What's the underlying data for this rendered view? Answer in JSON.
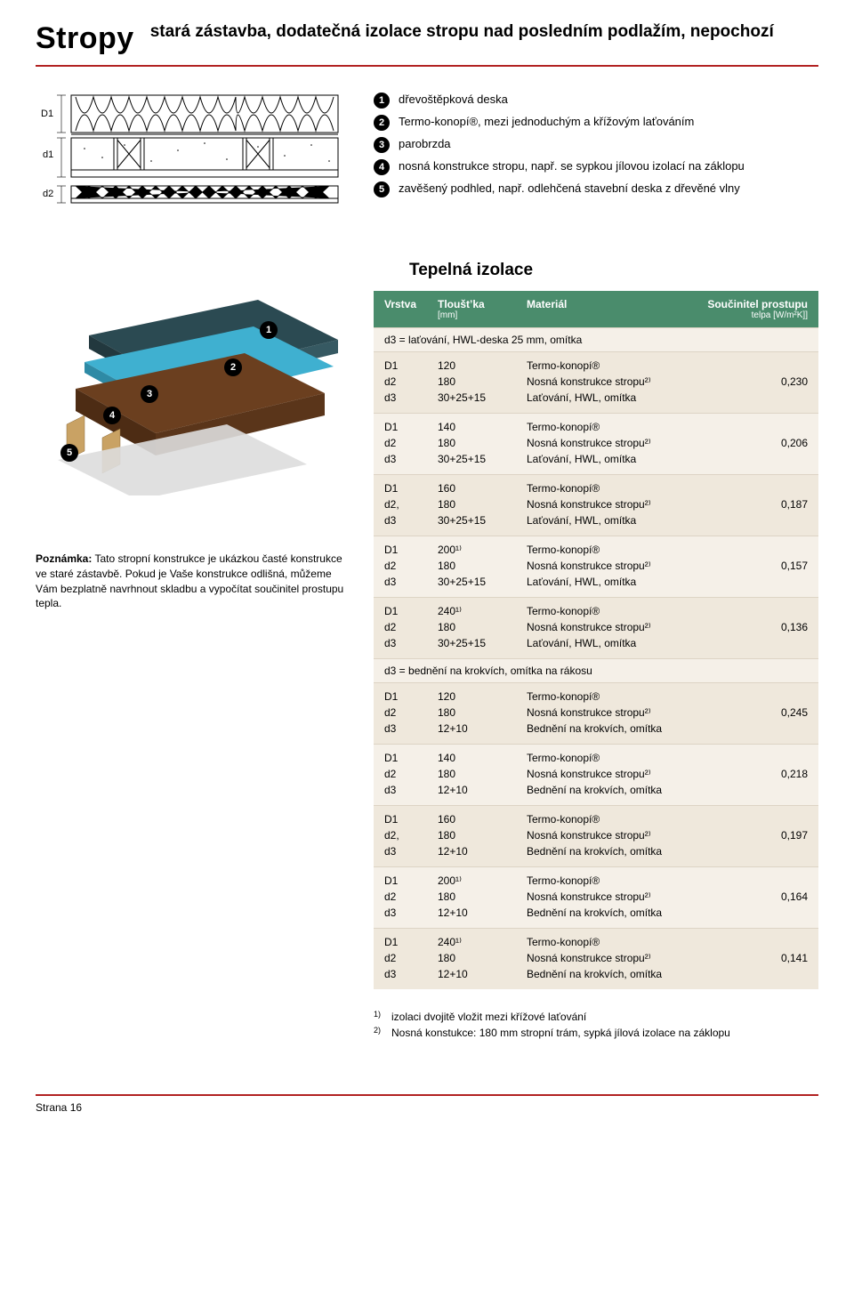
{
  "titleMain": "Stropy",
  "titleSub": "stará zástavba, dodatečná izolace stropu nad posledním podlažím, nepochozí",
  "diagramLabels": {
    "D1": "D1",
    "d1": "d1",
    "d2": "d2"
  },
  "legend": [
    "dřevoštěpková deska",
    "Termo-konopí®, mezi jednoduchým a křížovým laťováním",
    "parobrzda",
    "nosná konstrukce stropu, např. se sypkou jílovou izolací na záklopu",
    "zavěšený podhled, např. odlehčená stavební deska z dřevěné vlny"
  ],
  "sectionTitle": "Tepelná izolace",
  "tableHeader": {
    "c1": "Vrstva",
    "c2": "Tlouštʼka",
    "c2s": "[mm]",
    "c3": "Materiál",
    "c4": "Součinitel prostupu",
    "c4s": "telpa [W/m²K]]"
  },
  "groupHeader1": "d3 = laťování, HWL-deska 25 mm, omítka",
  "groupHeader2": "d3 = bednění na krokvích, omítka na rákosu",
  "rowsA": [
    {
      "col1": [
        "D1",
        "d2",
        "d3"
      ],
      "col2": [
        "120",
        "180",
        "30+25+15"
      ],
      "col3": [
        "Termo-konopí®",
        "Nosná konstrukce stropu²⁾",
        "Laťování, HWL, omítka"
      ],
      "val": "0,230"
    },
    {
      "col1": [
        "D1",
        "d2",
        "d3"
      ],
      "col2": [
        "140",
        "180",
        "30+25+15"
      ],
      "col3": [
        "Termo-konopí®",
        "Nosná konstrukce stropu²⁾",
        "Laťování, HWL, omítka"
      ],
      "val": "0,206"
    },
    {
      "col1": [
        "D1",
        "d2,",
        "d3"
      ],
      "col2": [
        "160",
        "180",
        "30+25+15"
      ],
      "col3": [
        "Termo-konopí®",
        "Nosná konstrukce stropu²⁾",
        "Laťování, HWL, omítka"
      ],
      "val": "0,187"
    },
    {
      "col1": [
        "D1",
        "d2",
        "d3"
      ],
      "col2": [
        "200¹⁾",
        "180",
        "30+25+15"
      ],
      "col3": [
        "Termo-konopí®",
        "Nosná konstrukce stropu²⁾",
        "Laťování, HWL, omítka"
      ],
      "val": "0,157"
    },
    {
      "col1": [
        "D1",
        "d2",
        "d3"
      ],
      "col2": [
        "240¹⁾",
        "180",
        "30+25+15"
      ],
      "col3": [
        "Termo-konopí®",
        "Nosná konstrukce stropu²⁾",
        "Laťování, HWL, omítka"
      ],
      "val": "0,136"
    }
  ],
  "rowsB": [
    {
      "col1": [
        "D1",
        "d2",
        "d3"
      ],
      "col2": [
        "120",
        "180",
        "12+10"
      ],
      "col3": [
        "Termo-konopí®",
        "Nosná konstrukce stropu²⁾",
        "Bednění na krokvích, omítka"
      ],
      "val": "0,245"
    },
    {
      "col1": [
        "D1",
        "d2",
        "d3"
      ],
      "col2": [
        "140",
        "180",
        "12+10"
      ],
      "col3": [
        "Termo-konopí®",
        "Nosná konstrukce stropu²⁾",
        "Bednění na krokvích, omítka"
      ],
      "val": "0,218"
    },
    {
      "col1": [
        "D1",
        "d2,",
        "d3"
      ],
      "col2": [
        "160",
        "180",
        "12+10"
      ],
      "col3": [
        "Termo-konopí®",
        "Nosná konstrukce stropu²⁾",
        "Bednění na krokvích, omítka"
      ],
      "val": "0,197"
    },
    {
      "col1": [
        "D1",
        "d2",
        "d3"
      ],
      "col2": [
        "200¹⁾",
        "180",
        "12+10"
      ],
      "col3": [
        "Termo-konopí®",
        "Nosná konstrukce stropu²⁾",
        "Bednění na krokvích, omítka"
      ],
      "val": "0,164"
    },
    {
      "col1": [
        "D1",
        "d2",
        "d3"
      ],
      "col2": [
        "240¹⁾",
        "180",
        "12+10"
      ],
      "col3": [
        "Termo-konopí®",
        "Nosná konstrukce stropu²⁾",
        "Bednění na krokvích, omítka"
      ],
      "val": "0,141"
    }
  ],
  "noteLabel": "Poznámka:",
  "noteText": " Tato stropní konstrukce je ukázkou časté konstrukce ve staré zástavbě. Pokud je Vaše konstrukce odlišná, můžeme Vám bezplatně navrhnout skladbu a vypočítat součinitel prostupu tepla.",
  "footnotes": [
    {
      "n": "1)",
      "t": "izolaci dvojitě vložit mezi křížové laťování"
    },
    {
      "n": "2)",
      "t": "Nosná konstukce: 180 mm stropní trám, sypká jílová izolace na záklopu"
    }
  ],
  "pageFoot": "Strana 16",
  "colors": {
    "rule": "#b22222",
    "headerBar": "#4a8c6c",
    "rowBg1": "#f5f0e8",
    "rowBg2": "#efe8dc",
    "isoTop": "#2b4a52",
    "isoMid": "#3fb0d0",
    "isoBrown": "#6b3f1f",
    "isoTan": "#c9a264"
  }
}
